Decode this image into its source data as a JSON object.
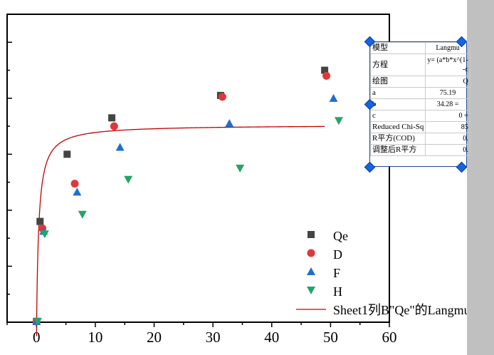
{
  "chart_data": {
    "type": "scatter",
    "xlim": [
      -5,
      60
    ],
    "ylim": [
      0,
      110
    ],
    "x_ticks": [
      0,
      10,
      20,
      30,
      40,
      50,
      60
    ],
    "grid": false,
    "series": [
      {
        "name": "Qe",
        "marker": "square",
        "color": "#444444",
        "x": [
          0,
          0.6,
          5.2,
          12.8,
          31.3,
          49
        ],
        "y": [
          0.3,
          36,
          60,
          73,
          81,
          90
        ]
      },
      {
        "name": "D",
        "marker": "circle",
        "color": "#e0373a",
        "x": [
          0,
          1.0,
          6.5,
          13.2,
          31.6,
          49.3
        ],
        "y": [
          0.3,
          33.5,
          49.5,
          70,
          80.5,
          88
        ]
      },
      {
        "name": "F",
        "marker": "triangle-up",
        "color": "#1f6fd1",
        "x": [
          0,
          1.2,
          6.9,
          14.2,
          32.8,
          50.5
        ],
        "y": [
          0.3,
          32.5,
          46.5,
          62.5,
          71,
          80
        ]
      },
      {
        "name": "H",
        "marker": "triangle-down",
        "color": "#25a468",
        "x": [
          0.2,
          1.4,
          7.8,
          15.6,
          34.6,
          51.4
        ],
        "y": [
          0.3,
          31.5,
          38.5,
          51,
          55,
          72
        ]
      }
    ],
    "fit": {
      "name": "Sheet1列B\"Qe\"的Langmu",
      "type": "line",
      "color": "#c00000",
      "x_range": [
        0,
        49
      ],
      "asymptote": 70.5,
      "k": 2.5
    }
  },
  "fit_table": {
    "title": "Langmu",
    "rows": [
      {
        "label": "模型",
        "value": ""
      },
      {
        "label": "方程",
        "value": "y= (a*b*x^(1-",
        "value2": "-c"
      },
      {
        "label": "绘图",
        "value": "Q"
      },
      {
        "label": "a",
        "value": "75.19"
      },
      {
        "label": "b",
        "value": "34.28 ="
      },
      {
        "label": "c",
        "value": "0 ="
      },
      {
        "label": "Reduced Chi-Sq",
        "value": "85"
      },
      {
        "label": "R平方(COD)",
        "value": "0."
      },
      {
        "label": "调整后R平方",
        "value": "0."
      }
    ]
  },
  "colors": {
    "axis": "#000000",
    "panel_border": "#1f4e9c",
    "handle": "#1565e0",
    "sidebar": "#c0c0c0"
  }
}
